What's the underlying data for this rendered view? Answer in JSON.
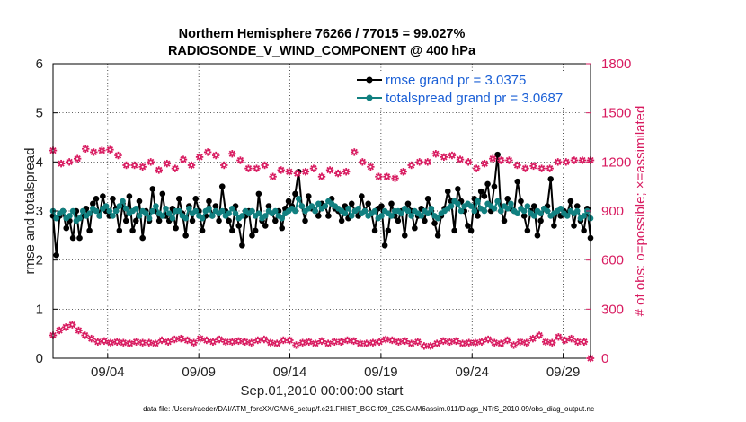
{
  "chart_data": {
    "type": "line",
    "title_line1": "Northern Hemisphere 76266 / 77015 = 99.027%",
    "title_line2": "RADIOSONDE_V_WIND_COMPONENT @ 400 hPa",
    "xlabel": "Sep.01,2010 00:00:00 start",
    "ylabel_left": "rmse and totalspread",
    "ylabel_right": "# of obs: o=possible; ×=assimilated",
    "footnote": "data file: /Users/raeder/DAI/ATM_forcXX/CAM6_setup/f.e21.FHIST_BGC.f09_025.CAM6assim.011/Diags_NTrS_2010-09/obs_diag_output.nc",
    "xlim": [
      1,
      30.5
    ],
    "ylim_left": [
      0,
      6
    ],
    "ylim_right": [
      0,
      1800
    ],
    "x_ticks": [
      4,
      9,
      14,
      19,
      24,
      29
    ],
    "x_tick_labels": [
      "09/04",
      "09/09",
      "09/14",
      "09/19",
      "09/24",
      "09/29"
    ],
    "y_left_ticks": [
      0,
      1,
      2,
      3,
      4,
      5,
      6
    ],
    "y_left_tick_labels": [
      "0",
      "1",
      "2",
      "3",
      "4",
      "5",
      "6"
    ],
    "y_right_ticks": [
      0,
      300,
      600,
      900,
      1200,
      1500,
      1800
    ],
    "y_right_tick_labels": [
      "0",
      "300",
      "600",
      "900",
      "1200",
      "1500",
      "1800"
    ],
    "legend": [
      {
        "label": "rmse grand pr = 3.0375",
        "color": "#000000"
      },
      {
        "label": "totalspread grand pr = 3.0687",
        "color": "#118080"
      }
    ],
    "colors": {
      "rmse": "#000000",
      "totalspread": "#118080",
      "obs": "#d81b60",
      "legend_text": "#1a5fd6"
    },
    "series": [
      {
        "name": "rmse",
        "axis": "left",
        "values": [
          2.9,
          2.1,
          2.9,
          3.0,
          2.65,
          2.8,
          2.45,
          3.0,
          2.45,
          2.9,
          3.05,
          2.6,
          3.15,
          3.25,
          2.9,
          3.3,
          3.0,
          2.9,
          3.25,
          3.05,
          2.6,
          3.15,
          2.8,
          3.3,
          2.6,
          2.8,
          3.2,
          2.45,
          3.0,
          2.8,
          3.45,
          3.0,
          2.8,
          3.35,
          2.9,
          2.8,
          3.05,
          2.65,
          3.25,
          2.95,
          2.5,
          3.1,
          2.8,
          3.25,
          3.0,
          2.6,
          2.9,
          3.2,
          2.9,
          3.1,
          2.8,
          3.5,
          3.0,
          2.8,
          2.6,
          3.1,
          2.7,
          2.3,
          2.9,
          3.0,
          2.5,
          2.6,
          3.35,
          2.8,
          2.7,
          3.1,
          2.95,
          2.8,
          3.0,
          2.65,
          3.05,
          3.2,
          3.1,
          3.35,
          3.8,
          3.1,
          2.8,
          3.3,
          3.05,
          3.0,
          2.9,
          3.15,
          3.1,
          2.9,
          3.25,
          3.05,
          3.0,
          2.8,
          3.1,
          2.85,
          3.15,
          3.0,
          2.9,
          3.3,
          3.0,
          3.15,
          2.95,
          2.6,
          3.05,
          3.1,
          2.3,
          2.6,
          3.15,
          2.9,
          2.8,
          3.0,
          2.5,
          3.15,
          3.0,
          2.65,
          2.9,
          3.05,
          2.8,
          3.25,
          3.0,
          2.75,
          2.5,
          2.9,
          3.05,
          3.4,
          3.2,
          2.6,
          3.45,
          3.2,
          3.0,
          2.7,
          2.6,
          3.25,
          2.9,
          3.4,
          3.3,
          3.55,
          3.0,
          3.5,
          4.15,
          3.0,
          2.8,
          3.25,
          3.05,
          3.0,
          3.6,
          3.2,
          2.9,
          2.6,
          3.0,
          3.1,
          2.5,
          2.8,
          3.05,
          3.1,
          3.65,
          2.7,
          3.0,
          2.9,
          3.0,
          2.95,
          3.2,
          2.7,
          3.1,
          2.8,
          2.6,
          3.05,
          2.45
        ]
      },
      {
        "name": "totalspread",
        "axis": "left",
        "values": [
          3.0,
          2.85,
          2.95,
          3.0,
          2.85,
          2.9,
          3.0,
          2.8,
          2.85,
          3.0,
          2.9,
          2.95,
          3.05,
          3.0,
          2.9,
          3.05,
          3.1,
          3.0,
          2.9,
          3.0,
          3.1,
          3.2,
          3.05,
          2.95,
          3.0,
          3.05,
          2.9,
          3.0,
          2.95,
          2.85,
          3.0,
          3.1,
          2.95,
          2.9,
          3.05,
          2.95,
          2.85,
          3.0,
          3.0,
          2.9,
          2.85,
          3.05,
          2.95,
          3.0,
          2.9,
          2.85,
          3.0,
          3.05,
          2.9,
          3.0,
          2.95,
          3.0,
          2.9,
          2.95,
          3.05,
          2.95,
          2.85,
          2.9,
          3.0,
          2.95,
          3.0,
          2.9,
          2.95,
          2.85,
          2.9,
          3.0,
          2.95,
          3.0,
          2.9,
          2.85,
          2.95,
          3.0,
          3.05,
          3.0,
          3.25,
          3.1,
          3.0,
          3.05,
          3.1,
          3.0,
          3.15,
          3.05,
          3.1,
          3.2,
          3.15,
          3.1,
          3.05,
          3.0,
          2.95,
          3.05,
          2.9,
          3.0,
          3.05,
          2.95,
          3.0,
          2.9,
          2.95,
          3.0,
          2.85,
          2.9,
          3.0,
          2.95,
          2.9,
          3.0,
          3.0,
          2.95,
          3.05,
          3.0,
          2.9,
          3.0,
          2.95,
          2.9,
          3.0,
          2.95,
          3.05,
          2.9,
          2.85,
          2.95,
          3.0,
          3.05,
          3.1,
          3.2,
          3.15,
          3.0,
          3.1,
          3.15,
          3.1,
          3.0,
          3.2,
          3.05,
          3.0,
          3.15,
          3.1,
          3.05,
          3.2,
          3.0,
          3.1,
          3.05,
          3.15,
          3.0,
          2.95,
          3.05,
          3.0,
          3.1,
          2.95,
          2.9,
          3.0,
          2.95,
          3.05,
          3.0,
          2.9,
          2.95,
          3.0,
          3.05,
          2.95,
          2.9,
          3.0,
          2.95,
          3.0,
          2.85,
          2.9,
          3.0,
          2.85
        ]
      },
      {
        "name": "obs_possible",
        "axis": "right",
        "values": [
          1270,
          1190,
          1200,
          1220,
          1280,
          1260,
          1270,
          1275,
          1240,
          1180,
          1180,
          1170,
          1200,
          1150,
          1190,
          1160,
          1215,
          1180,
          1230,
          1260,
          1240,
          1180,
          1250,
          1210,
          1160,
          1160,
          1180,
          1110,
          1150,
          1140,
          1130,
          1140,
          1160,
          1110,
          1150,
          1130,
          1140,
          1260,
          1200,
          1170,
          1110,
          1110,
          1100,
          1140,
          1180,
          1200,
          1200,
          1250,
          1230,
          1240,
          1215,
          1200,
          1160,
          1190,
          1220,
          1210,
          1210,
          1180,
          1160,
          1175,
          1160,
          1160,
          1200,
          1200,
          1210,
          1210,
          1210
        ]
      },
      {
        "name": "obs_assimilated",
        "axis": "right",
        "values": [
          140,
          170,
          190,
          205,
          170,
          140,
          120,
          100,
          105,
          95,
          100,
          95,
          90,
          100,
          95,
          95,
          90,
          110,
          100,
          115,
          120,
          110,
          95,
          120,
          110,
          100,
          115,
          100,
          100,
          105,
          100,
          95,
          110,
          115,
          95,
          90,
          110,
          110,
          80,
          95,
          100,
          90,
          105,
          90,
          100,
          100,
          110,
          105,
          90,
          90,
          95,
          100,
          115,
          110,
          100,
          105,
          90,
          100,
          75,
          75,
          90,
          105,
          100,
          105,
          90,
          95,
          95,
          100,
          115,
          95,
          90,
          110,
          80,
          100,
          95,
          120,
          140,
          100,
          95,
          130,
          110,
          120,
          100,
          100,
          0
        ]
      }
    ]
  }
}
